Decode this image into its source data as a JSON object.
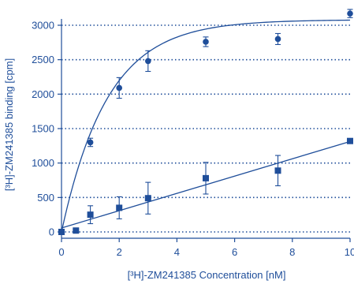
{
  "chart_data": {
    "type": "scatter",
    "title": "",
    "xlabel": "[³H]-ZM241385 Concentration [nM]",
    "ylabel": "[³H]-ZM241385 binding [cpm]",
    "xlim": [
      0,
      10
    ],
    "ylim": [
      0,
      3000
    ],
    "x_ticks": [
      0,
      2,
      4,
      6,
      8,
      10
    ],
    "x_tick_labels": [
      "0",
      "2",
      "4",
      "6",
      "8",
      "10"
    ],
    "y_ticks": [
      0,
      500,
      1000,
      1500,
      2000,
      2500,
      3000
    ],
    "y_tick_labels": [
      "0",
      "500",
      "1000",
      "1500",
      "2000",
      "2500",
      "3000"
    ],
    "grid": "horizontal-dotted",
    "colors": {
      "primary": "#1f4e9a"
    },
    "series": [
      {
        "marker": "circle",
        "fit": "saturation-curve",
        "x": [
          0,
          1,
          2,
          3,
          5,
          7.5,
          10
        ],
        "y": [
          0,
          1300,
          2090,
          2480,
          2760,
          2800,
          3170
        ],
        "err": [
          0,
          60,
          150,
          150,
          70,
          80,
          60
        ]
      },
      {
        "marker": "square",
        "fit": "linear",
        "x": [
          0,
          0.5,
          1,
          2,
          3,
          5,
          7.5,
          10
        ],
        "y": [
          0,
          20,
          250,
          350,
          490,
          780,
          890,
          1320
        ],
        "err": [
          0,
          0,
          130,
          160,
          230,
          230,
          220,
          0
        ]
      }
    ]
  }
}
